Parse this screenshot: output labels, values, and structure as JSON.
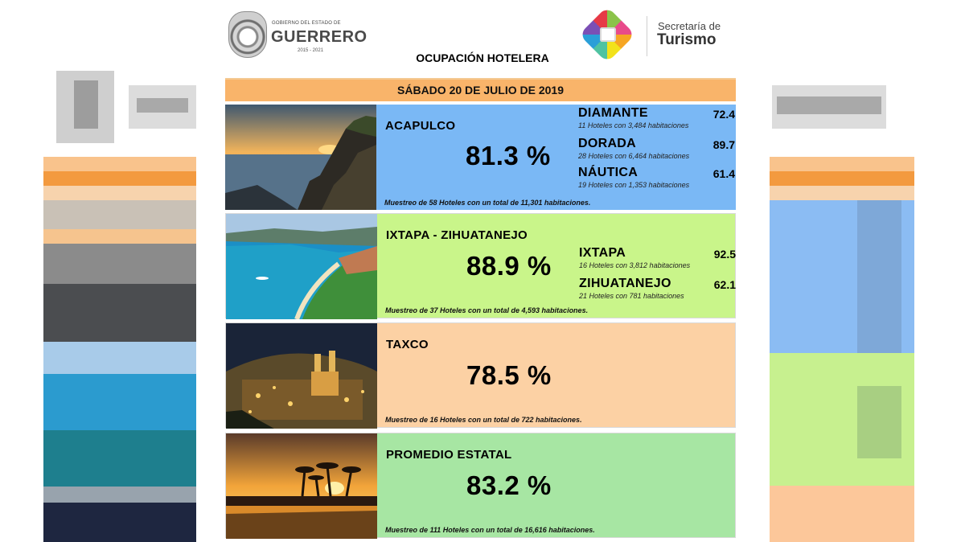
{
  "header": {
    "gov_small": "GOBIERNO DEL ESTADO DE",
    "gov_name": "GUERRERO",
    "gov_years": "2015 - 2021",
    "secretaria": "Secretaría de",
    "turismo": "Turismo",
    "title": "OCUPACIÓN HOTELERA",
    "date": "SÁBADO 20 DE JULIO DE 2019"
  },
  "sections": [
    {
      "name": "ACAPULCO",
      "pct": "81.3 %",
      "sample": "Muestreo de 58 Hoteles con un total de 11,301 habitaciones.",
      "color": "#7ab8f5",
      "zones": [
        {
          "name": "DIAMANTE",
          "value": "72.4",
          "sub": "11 Hoteles con 3,484 habitaciones"
        },
        {
          "name": "DORADA",
          "value": "89.7",
          "sub": "28 Hoteles con 6,464 habitaciones"
        },
        {
          "name": "NÁUTICA",
          "value": "61.4",
          "sub": "19 Hoteles con 1,353 habitaciones"
        }
      ]
    },
    {
      "name": "IXTAPA - ZIHUATANEJO",
      "pct": "88.9 %",
      "sample": "Muestreo de 37 Hoteles con un total de 4,593 habitaciones.",
      "color": "#c9f58a",
      "zones": [
        {
          "name": "IXTAPA",
          "value": "92.5",
          "sub": "16 Hoteles con 3,812 habitaciones"
        },
        {
          "name": "ZIHUATANEJO",
          "value": "62.1",
          "sub": "21 Hoteles con 781 habitaciones"
        }
      ]
    },
    {
      "name": "TAXCO",
      "pct": "78.5 %",
      "sample": "Muestreo de 16 Hoteles con un total de 722 habitaciones.",
      "color": "#fcd1a4",
      "zones": []
    },
    {
      "name": "PROMEDIO ESTATAL",
      "pct": "83.2 %",
      "sample": "Muestreo de 111 Hoteles con un total de 16,616 habitaciones.",
      "color": "#a7e6a3",
      "zones": []
    }
  ],
  "colors": {
    "date_bar": "#f9b46a",
    "acapulco": "#7ab8f5",
    "ixtapa": "#c9f58a",
    "taxco": "#fcd1a4",
    "promedio": "#a7e6a3"
  }
}
